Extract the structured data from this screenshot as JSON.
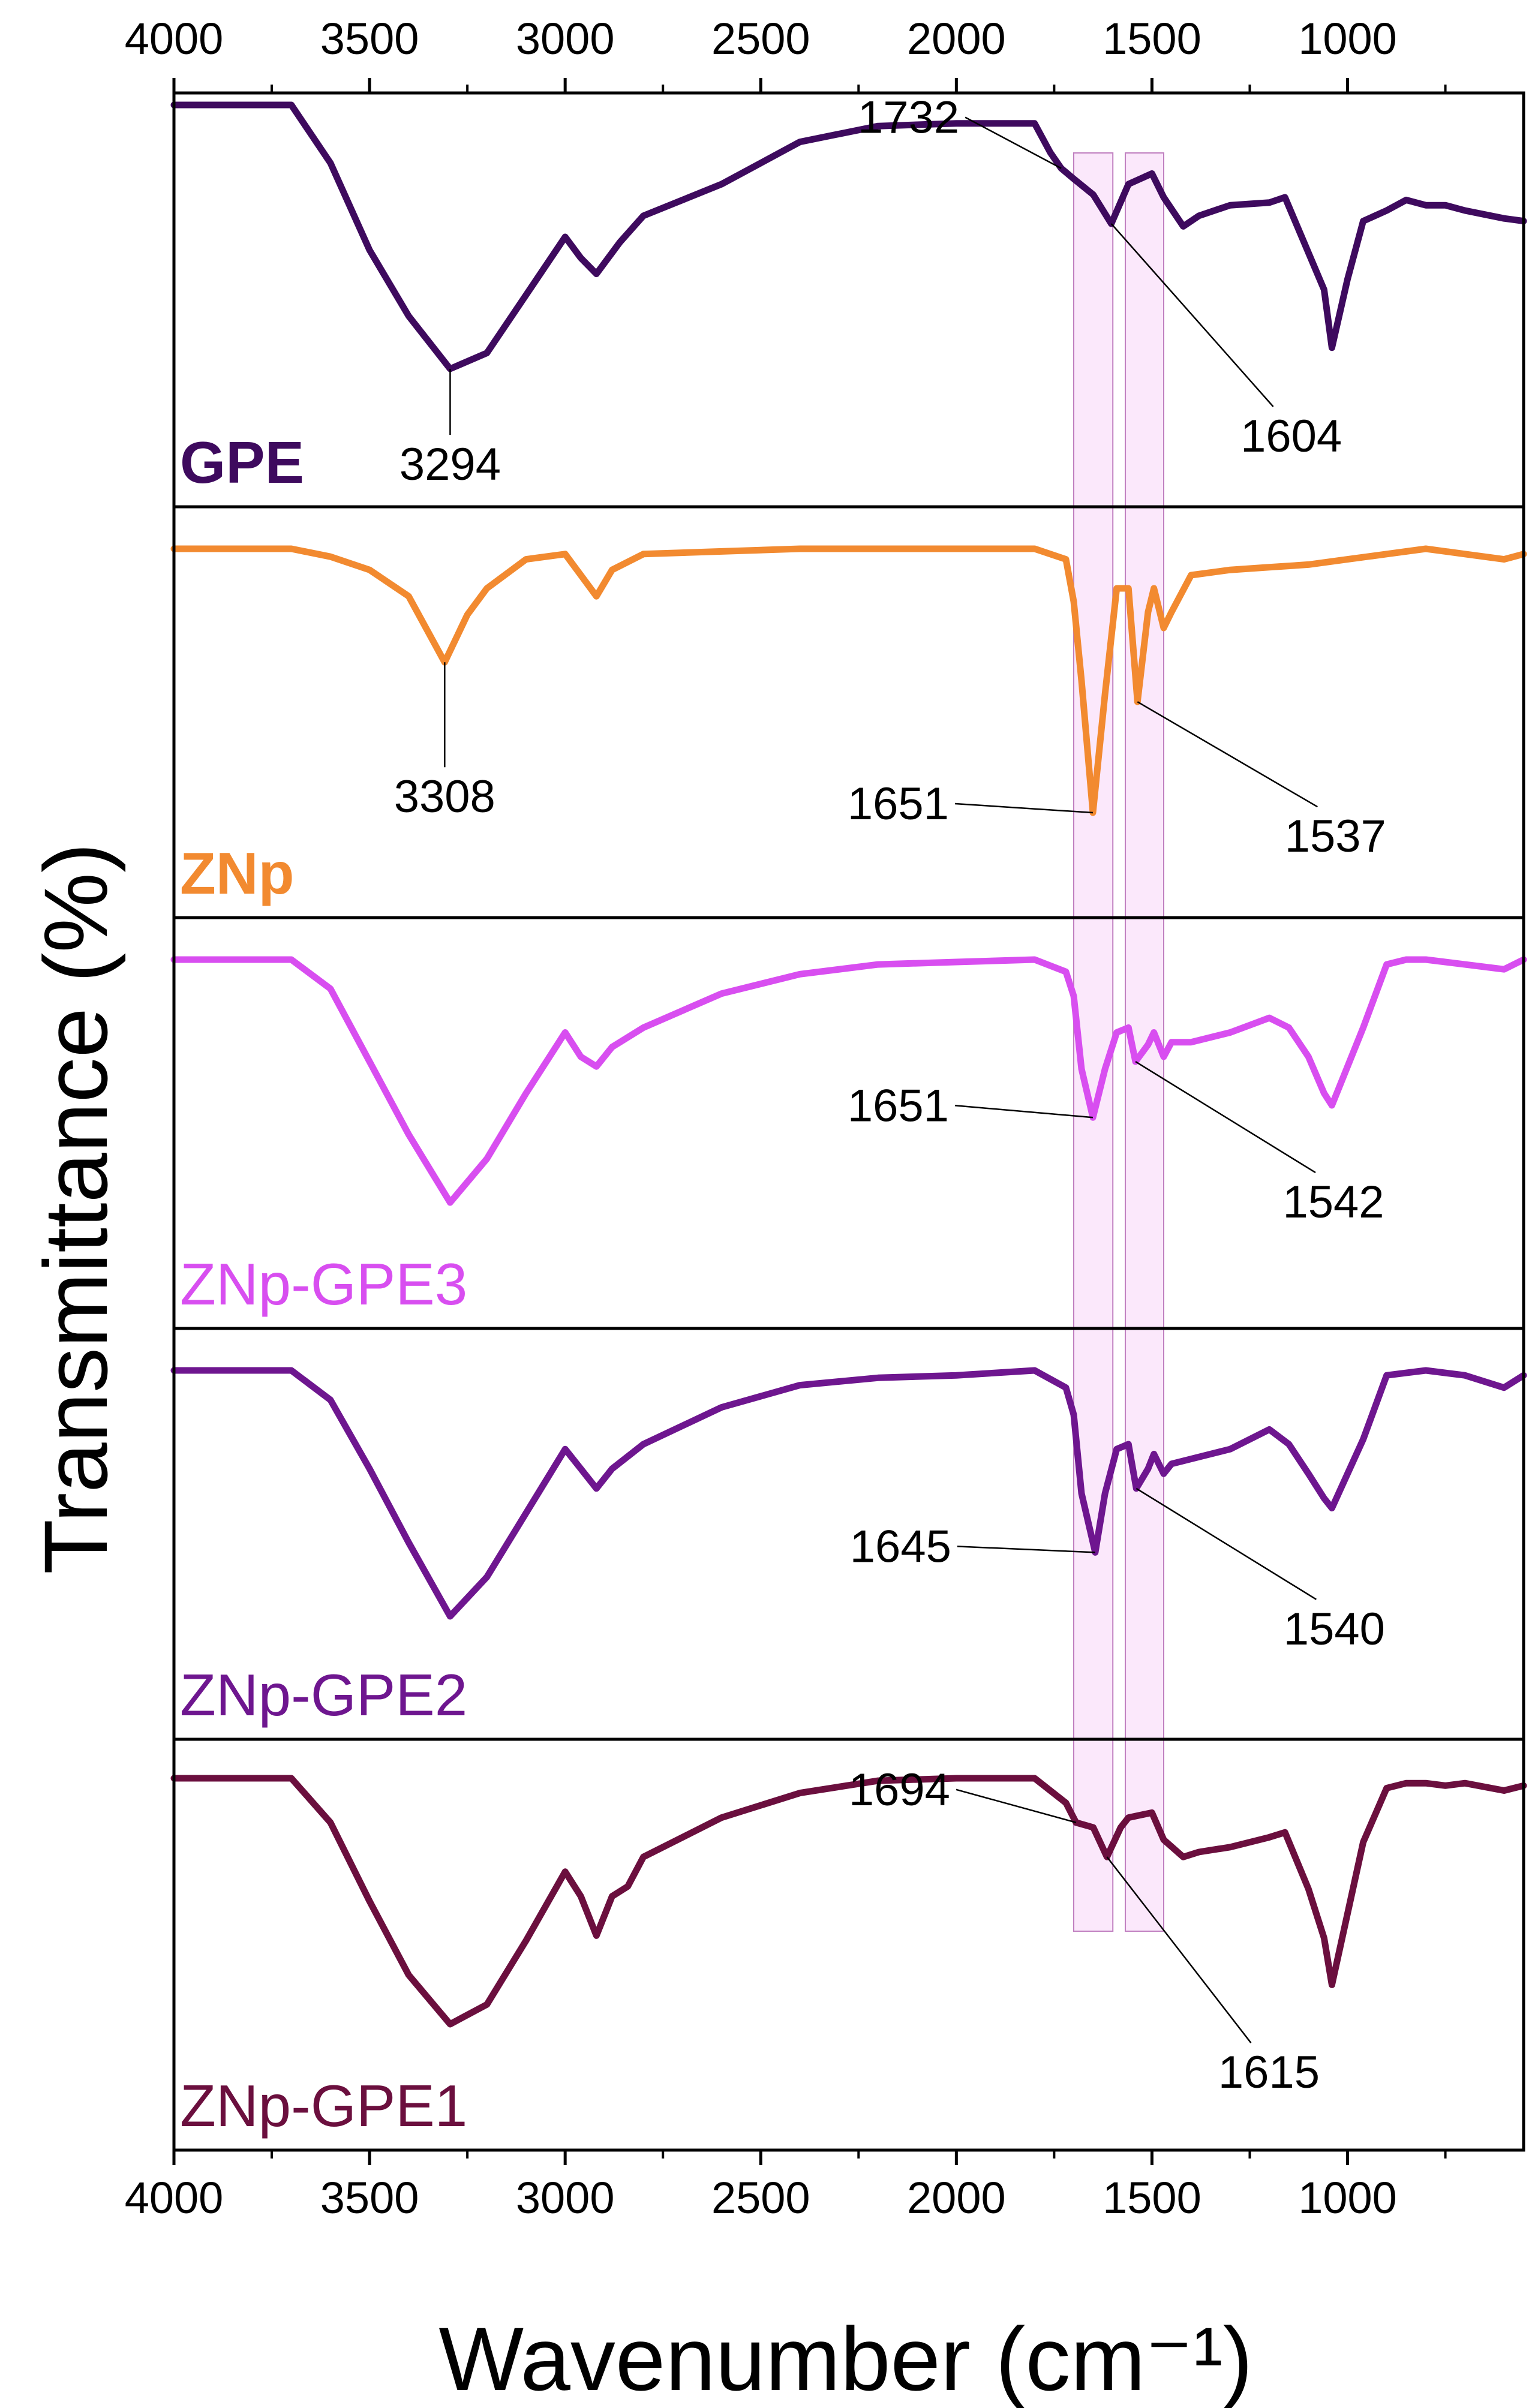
{
  "chart_data": {
    "type": "line",
    "layout": "stacked-offset",
    "xlabel": "Wavenumber (cm⁻¹)",
    "ylabel": "Transmittance (%)",
    "x_direction": "reversed",
    "xlim": [
      4000,
      550
    ],
    "xticks": [
      4000,
      3500,
      3000,
      2500,
      2000,
      1500,
      1000
    ],
    "x_tick_labels": [
      "4000",
      "3500",
      "3000",
      "2500",
      "2000",
      "1500",
      "1000"
    ],
    "highlight_bands": [
      [
        1700,
        1600
      ],
      [
        1568,
        1470
      ]
    ],
    "series": [
      {
        "name": "GPE",
        "label_bold": true,
        "color": "#3e0a5e",
        "points": [
          [
            4000,
            1.0
          ],
          [
            3700,
            1.0
          ],
          [
            3600,
            0.78
          ],
          [
            3500,
            0.45
          ],
          [
            3400,
            0.2
          ],
          [
            3294,
            0.0
          ],
          [
            3200,
            0.06
          ],
          [
            3100,
            0.28
          ],
          [
            3000,
            0.5
          ],
          [
            2960,
            0.42
          ],
          [
            2920,
            0.36
          ],
          [
            2860,
            0.48
          ],
          [
            2800,
            0.58
          ],
          [
            2600,
            0.7
          ],
          [
            2400,
            0.86
          ],
          [
            2200,
            0.92
          ],
          [
            2000,
            0.93
          ],
          [
            1800,
            0.93
          ],
          [
            1760,
            0.82
          ],
          [
            1732,
            0.76
          ],
          [
            1700,
            0.72
          ],
          [
            1650,
            0.66
          ],
          [
            1604,
            0.55
          ],
          [
            1560,
            0.7
          ],
          [
            1500,
            0.74
          ],
          [
            1470,
            0.65
          ],
          [
            1420,
            0.54
          ],
          [
            1380,
            0.58
          ],
          [
            1300,
            0.62
          ],
          [
            1200,
            0.63
          ],
          [
            1160,
            0.65
          ],
          [
            1100,
            0.44
          ],
          [
            1060,
            0.3
          ],
          [
            1040,
            0.08
          ],
          [
            1000,
            0.34
          ],
          [
            960,
            0.56
          ],
          [
            900,
            0.6
          ],
          [
            850,
            0.64
          ],
          [
            800,
            0.62
          ],
          [
            750,
            0.62
          ],
          [
            700,
            0.6
          ],
          [
            600,
            0.57
          ],
          [
            550,
            0.56
          ]
        ],
        "annotations": [
          {
            "label": "3294",
            "x": 3294
          },
          {
            "label": "1732",
            "x": 1732
          },
          {
            "label": "1604",
            "x": 1604
          }
        ]
      },
      {
        "name": "ZNp",
        "label_bold": true,
        "color": "#f28a30",
        "points": [
          [
            4000,
            1.0
          ],
          [
            3700,
            1.0
          ],
          [
            3600,
            0.97
          ],
          [
            3500,
            0.92
          ],
          [
            3400,
            0.82
          ],
          [
            3308,
            0.57
          ],
          [
            3250,
            0.75
          ],
          [
            3200,
            0.85
          ],
          [
            3100,
            0.96
          ],
          [
            3000,
            0.98
          ],
          [
            2960,
            0.9
          ],
          [
            2920,
            0.82
          ],
          [
            2880,
            0.92
          ],
          [
            2800,
            0.98
          ],
          [
            2600,
            0.99
          ],
          [
            2400,
            1.0
          ],
          [
            2200,
            1.0
          ],
          [
            2000,
            1.0
          ],
          [
            1800,
            1.0
          ],
          [
            1720,
            0.96
          ],
          [
            1700,
            0.8
          ],
          [
            1680,
            0.5
          ],
          [
            1651,
            0.0
          ],
          [
            1620,
            0.45
          ],
          [
            1590,
            0.85
          ],
          [
            1560,
            0.85
          ],
          [
            1537,
            0.42
          ],
          [
            1510,
            0.76
          ],
          [
            1495,
            0.85
          ],
          [
            1470,
            0.7
          ],
          [
            1450,
            0.76
          ],
          [
            1400,
            0.9
          ],
          [
            1300,
            0.92
          ],
          [
            1200,
            0.93
          ],
          [
            1100,
            0.94
          ],
          [
            1000,
            0.96
          ],
          [
            900,
            0.98
          ],
          [
            800,
            1.0
          ],
          [
            700,
            0.98
          ],
          [
            600,
            0.96
          ],
          [
            550,
            0.98
          ]
        ],
        "annotations": [
          {
            "label": "3308",
            "x": 3308
          },
          {
            "label": "1651",
            "x": 1651
          },
          {
            "label": "1537",
            "x": 1537
          }
        ]
      },
      {
        "name": "ZNp-GPE3",
        "label_bold": false,
        "color": "#d84ef0",
        "points": [
          [
            4000,
            1.0
          ],
          [
            3700,
            1.0
          ],
          [
            3600,
            0.88
          ],
          [
            3500,
            0.58
          ],
          [
            3400,
            0.28
          ],
          [
            3294,
            0.0
          ],
          [
            3200,
            0.18
          ],
          [
            3100,
            0.45
          ],
          [
            3000,
            0.7
          ],
          [
            2960,
            0.6
          ],
          [
            2920,
            0.56
          ],
          [
            2880,
            0.64
          ],
          [
            2800,
            0.72
          ],
          [
            2600,
            0.86
          ],
          [
            2400,
            0.94
          ],
          [
            2200,
            0.98
          ],
          [
            2000,
            0.99
          ],
          [
            1800,
            1.0
          ],
          [
            1720,
            0.95
          ],
          [
            1700,
            0.85
          ],
          [
            1680,
            0.55
          ],
          [
            1651,
            0.35
          ],
          [
            1620,
            0.55
          ],
          [
            1590,
            0.7
          ],
          [
            1560,
            0.72
          ],
          [
            1542,
            0.58
          ],
          [
            1510,
            0.65
          ],
          [
            1495,
            0.7
          ],
          [
            1470,
            0.6
          ],
          [
            1450,
            0.66
          ],
          [
            1400,
            0.66
          ],
          [
            1300,
            0.7
          ],
          [
            1200,
            0.76
          ],
          [
            1150,
            0.72
          ],
          [
            1100,
            0.6
          ],
          [
            1060,
            0.45
          ],
          [
            1040,
            0.4
          ],
          [
            1000,
            0.56
          ],
          [
            960,
            0.72
          ],
          [
            900,
            0.98
          ],
          [
            850,
            1.0
          ],
          [
            800,
            1.0
          ],
          [
            700,
            0.98
          ],
          [
            600,
            0.96
          ],
          [
            550,
            1.0
          ]
        ],
        "annotations": [
          {
            "label": "1651",
            "x": 1651
          },
          {
            "label": "1542",
            "x": 1542
          }
        ]
      },
      {
        "name": "ZNp-GPE2",
        "label_bold": false,
        "color": "#6e168f",
        "points": [
          [
            4000,
            1.0
          ],
          [
            3700,
            1.0
          ],
          [
            3600,
            0.88
          ],
          [
            3500,
            0.6
          ],
          [
            3400,
            0.3
          ],
          [
            3294,
            0.0
          ],
          [
            3200,
            0.16
          ],
          [
            3100,
            0.42
          ],
          [
            3000,
            0.68
          ],
          [
            2960,
            0.6
          ],
          [
            2920,
            0.52
          ],
          [
            2880,
            0.6
          ],
          [
            2800,
            0.7
          ],
          [
            2600,
            0.85
          ],
          [
            2400,
            0.94
          ],
          [
            2200,
            0.97
          ],
          [
            2000,
            0.98
          ],
          [
            1800,
            1.0
          ],
          [
            1720,
            0.93
          ],
          [
            1700,
            0.82
          ],
          [
            1680,
            0.5
          ],
          [
            1645,
            0.26
          ],
          [
            1620,
            0.5
          ],
          [
            1590,
            0.68
          ],
          [
            1560,
            0.7
          ],
          [
            1540,
            0.52
          ],
          [
            1510,
            0.6
          ],
          [
            1495,
            0.66
          ],
          [
            1470,
            0.58
          ],
          [
            1450,
            0.62
          ],
          [
            1400,
            0.64
          ],
          [
            1300,
            0.68
          ],
          [
            1200,
            0.76
          ],
          [
            1150,
            0.7
          ],
          [
            1100,
            0.58
          ],
          [
            1060,
            0.48
          ],
          [
            1040,
            0.44
          ],
          [
            1000,
            0.58
          ],
          [
            960,
            0.72
          ],
          [
            900,
            0.98
          ],
          [
            850,
            0.99
          ],
          [
            800,
            1.0
          ],
          [
            700,
            0.98
          ],
          [
            600,
            0.93
          ],
          [
            550,
            0.98
          ]
        ],
        "annotations": [
          {
            "label": "1645",
            "x": 1645
          },
          {
            "label": "1540",
            "x": 1540
          }
        ]
      },
      {
        "name": "ZNp-GPE1",
        "label_bold": false,
        "color": "#6b0f3e",
        "points": [
          [
            4000,
            1.0
          ],
          [
            3700,
            1.0
          ],
          [
            3600,
            0.82
          ],
          [
            3500,
            0.5
          ],
          [
            3400,
            0.2
          ],
          [
            3294,
            0.0
          ],
          [
            3200,
            0.08
          ],
          [
            3100,
            0.34
          ],
          [
            3000,
            0.62
          ],
          [
            2960,
            0.52
          ],
          [
            2920,
            0.36
          ],
          [
            2880,
            0.52
          ],
          [
            2840,
            0.56
          ],
          [
            2800,
            0.68
          ],
          [
            2600,
            0.84
          ],
          [
            2400,
            0.94
          ],
          [
            2200,
            0.99
          ],
          [
            2000,
            1.0
          ],
          [
            1800,
            1.0
          ],
          [
            1720,
            0.9
          ],
          [
            1694,
            0.82
          ],
          [
            1650,
            0.8
          ],
          [
            1615,
            0.68
          ],
          [
            1580,
            0.8
          ],
          [
            1560,
            0.84
          ],
          [
            1500,
            0.86
          ],
          [
            1470,
            0.75
          ],
          [
            1420,
            0.68
          ],
          [
            1380,
            0.7
          ],
          [
            1300,
            0.72
          ],
          [
            1200,
            0.76
          ],
          [
            1160,
            0.78
          ],
          [
            1100,
            0.55
          ],
          [
            1060,
            0.35
          ],
          [
            1040,
            0.16
          ],
          [
            1000,
            0.45
          ],
          [
            960,
            0.74
          ],
          [
            900,
            0.96
          ],
          [
            850,
            0.98
          ],
          [
            800,
            0.98
          ],
          [
            750,
            0.97
          ],
          [
            700,
            0.98
          ],
          [
            600,
            0.95
          ],
          [
            550,
            0.97
          ]
        ],
        "annotations": [
          {
            "label": "1694",
            "x": 1694
          },
          {
            "label": "1615",
            "x": 1615
          }
        ]
      }
    ]
  }
}
